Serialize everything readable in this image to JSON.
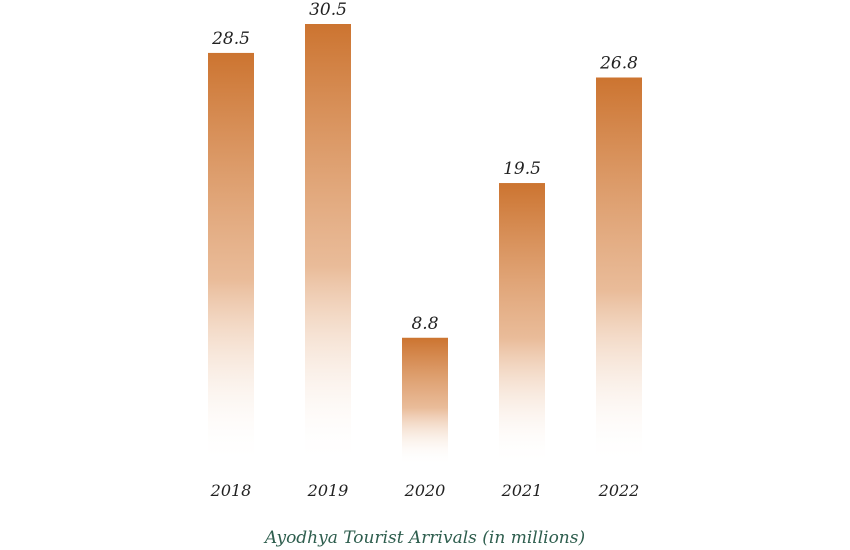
{
  "chart_data": {
    "type": "bar",
    "title": "Ayodhya Tourist Arrivals (in millions)",
    "categories": [
      "2018",
      "2019",
      "2020",
      "2021",
      "2022"
    ],
    "values": [
      28.5,
      30.5,
      8.8,
      19.5,
      26.8
    ],
    "data_labels": [
      "28.5",
      "30.5",
      "8.8",
      "19.5",
      "26.8"
    ],
    "xlabel": "",
    "ylabel": "",
    "ylim": [
      0,
      30.5
    ],
    "grid": false,
    "legend": "none",
    "colors": {
      "bar_top": "#cc7430",
      "bar_bottom": "#ffffff",
      "title": "#2e5e4e",
      "text": "#222222"
    }
  }
}
